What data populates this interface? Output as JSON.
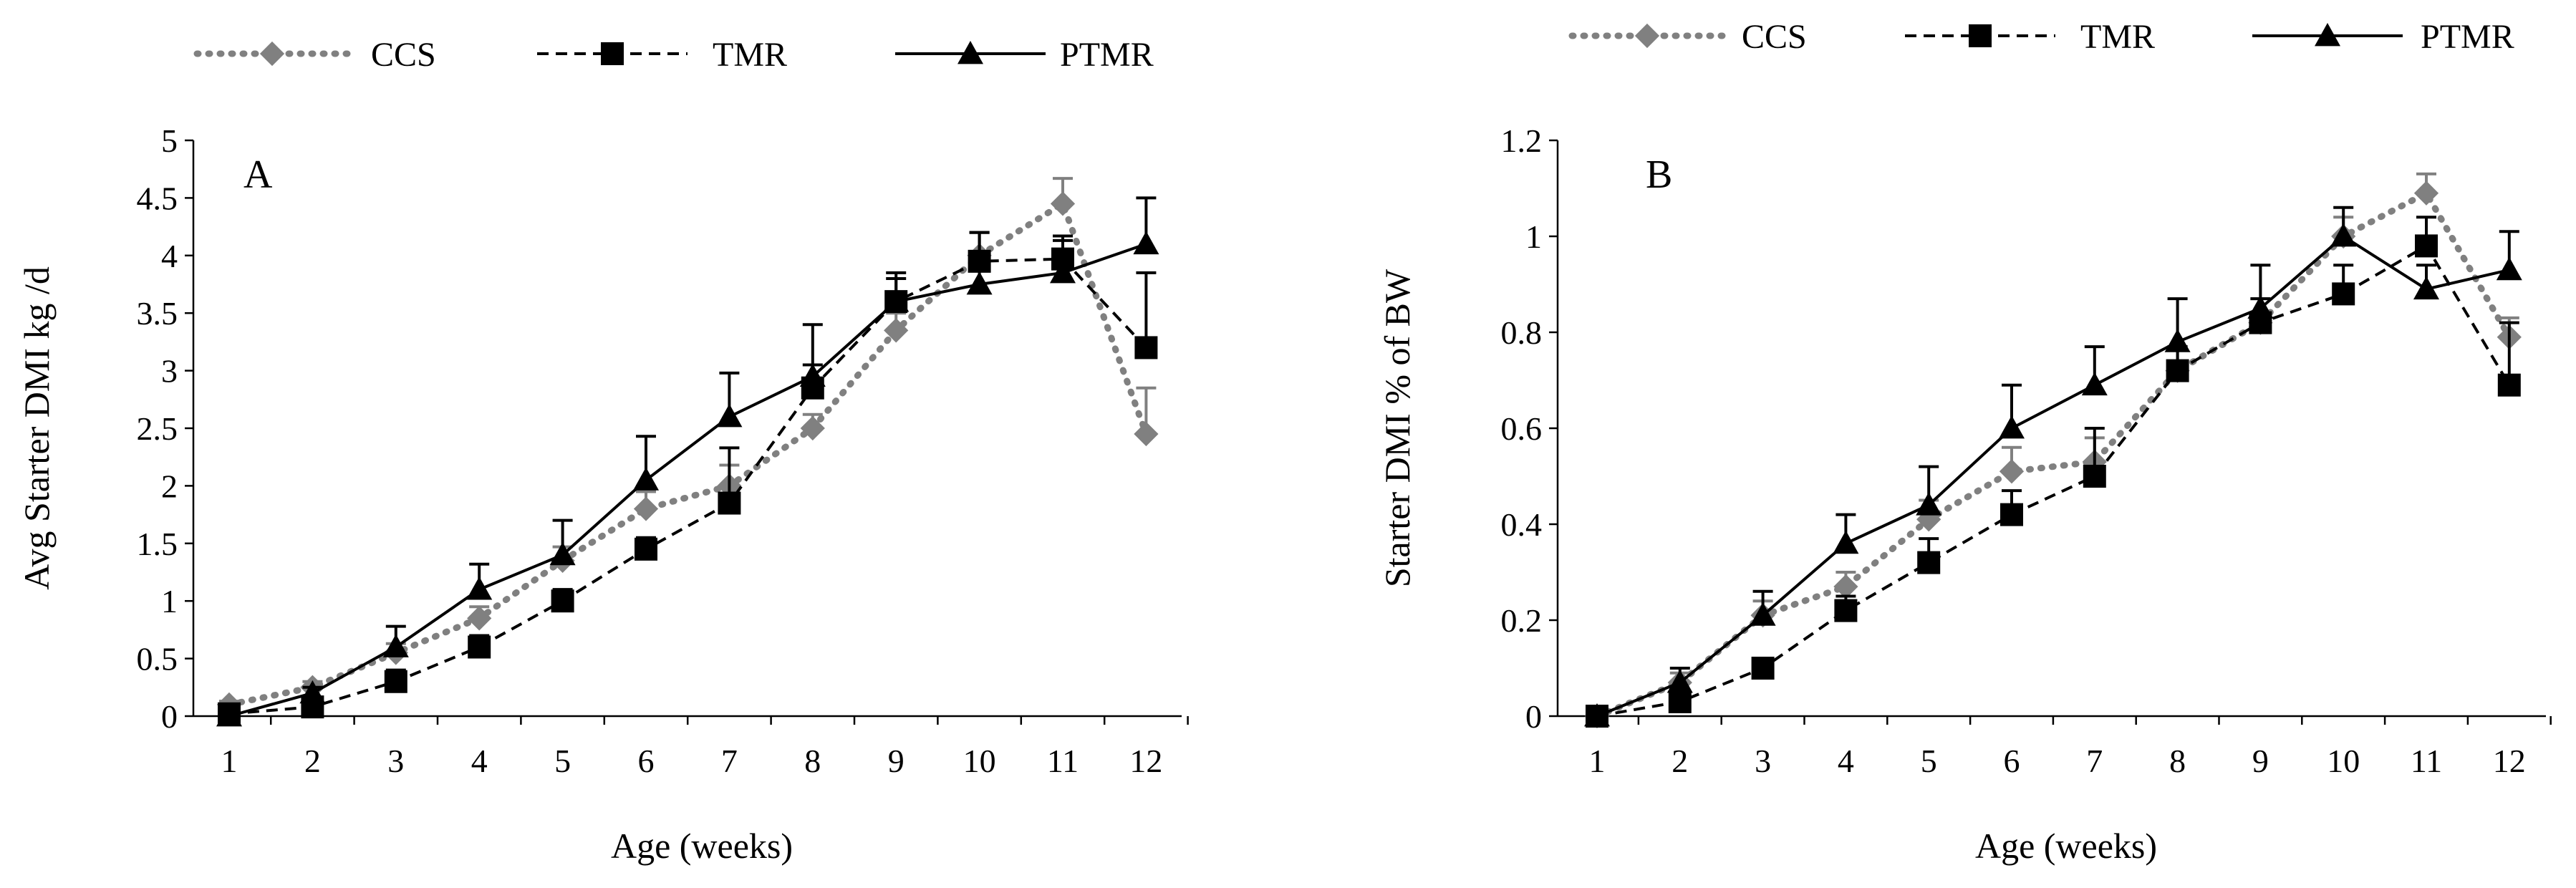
{
  "legend": [
    {
      "name": "CCS"
    },
    {
      "name": "TMR"
    },
    {
      "name": "PTMR"
    }
  ],
  "chart_data": [
    {
      "type": "line",
      "panel_label": "A",
      "title": "",
      "xlabel": "Age (weeks)",
      "ylabel": "Avg Starter DMI kg /d",
      "categories": [
        "1",
        "2",
        "3",
        "4",
        "5",
        "6",
        "7",
        "8",
        "9",
        "10",
        "11",
        "12"
      ],
      "ylim": [
        0,
        5
      ],
      "yticks": [
        0,
        0.5,
        1,
        1.5,
        2,
        2.5,
        3,
        3.5,
        4,
        4.5,
        5
      ],
      "ytick_labels": [
        "0",
        "0.5",
        "1",
        "1.5",
        "2",
        "2.5",
        "3",
        "3.5",
        "4",
        "4.5",
        "5"
      ],
      "legend_position": "top",
      "series": [
        {
          "name": "CCS",
          "style": "dotted",
          "color": "#808080",
          "marker": "diamond",
          "values": [
            0.1,
            0.25,
            0.55,
            0.85,
            1.35,
            1.8,
            2.0,
            2.5,
            3.35,
            4.0,
            4.45,
            2.45
          ],
          "errors": [
            0.03,
            0.05,
            0.08,
            0.1,
            0.12,
            0.15,
            0.18,
            0.12,
            0.15,
            0.2,
            0.22,
            0.4
          ]
        },
        {
          "name": "TMR",
          "style": "dashed",
          "color": "#000000",
          "marker": "square",
          "values": [
            0.02,
            0.08,
            0.3,
            0.6,
            1.0,
            1.45,
            1.85,
            2.85,
            3.6,
            3.95,
            3.97,
            3.2
          ],
          "errors": [
            0.02,
            0.04,
            0.1,
            0.1,
            0.1,
            0.1,
            0.48,
            0.2,
            0.2,
            0.25,
            0.2,
            0.65
          ]
        },
        {
          "name": "PTMR",
          "style": "solid",
          "color": "#000000",
          "marker": "triangle",
          "values": [
            0.0,
            0.2,
            0.6,
            1.1,
            1.4,
            2.05,
            2.6,
            2.95,
            3.6,
            3.75,
            3.85,
            4.1
          ],
          "errors": [
            0.02,
            0.05,
            0.18,
            0.22,
            0.3,
            0.38,
            0.38,
            0.45,
            0.25,
            0.45,
            0.28,
            0.4
          ]
        }
      ]
    },
    {
      "type": "line",
      "panel_label": "B",
      "title": "",
      "xlabel": "Age (weeks)",
      "ylabel": "Starter DMI % of BW",
      "categories": [
        "1",
        "2",
        "3",
        "4",
        "5",
        "6",
        "7",
        "8",
        "9",
        "10",
        "11",
        "12"
      ],
      "ylim": [
        0,
        1.2
      ],
      "yticks": [
        0,
        0.2,
        0.4,
        0.6,
        0.8,
        1,
        1.2
      ],
      "ytick_labels": [
        "0",
        "0.2",
        "0.4",
        "0.6",
        "0.8",
        "1",
        "1.2"
      ],
      "legend_position": "top",
      "series": [
        {
          "name": "CCS",
          "style": "dotted",
          "color": "#808080",
          "marker": "diamond",
          "values": [
            0.0,
            0.07,
            0.21,
            0.27,
            0.41,
            0.51,
            0.53,
            0.72,
            0.82,
            1.0,
            1.09,
            0.79
          ],
          "errors": [
            0.01,
            0.02,
            0.03,
            0.03,
            0.04,
            0.05,
            0.05,
            0.05,
            0.05,
            0.04,
            0.04,
            0.04
          ]
        },
        {
          "name": "TMR",
          "style": "dashed",
          "color": "#000000",
          "marker": "square",
          "values": [
            0.0,
            0.03,
            0.1,
            0.22,
            0.32,
            0.42,
            0.5,
            0.72,
            0.82,
            0.88,
            0.98,
            0.69
          ],
          "errors": [
            0.01,
            0.02,
            0.02,
            0.03,
            0.05,
            0.05,
            0.1,
            0.05,
            0.05,
            0.06,
            0.06,
            0.13
          ]
        },
        {
          "name": "PTMR",
          "style": "solid",
          "color": "#000000",
          "marker": "triangle",
          "values": [
            0.0,
            0.07,
            0.21,
            0.36,
            0.44,
            0.6,
            0.69,
            0.78,
            0.85,
            1.0,
            0.89,
            0.93
          ],
          "errors": [
            0.01,
            0.03,
            0.05,
            0.06,
            0.08,
            0.09,
            0.08,
            0.09,
            0.09,
            0.06,
            0.05,
            0.08
          ]
        }
      ]
    }
  ]
}
